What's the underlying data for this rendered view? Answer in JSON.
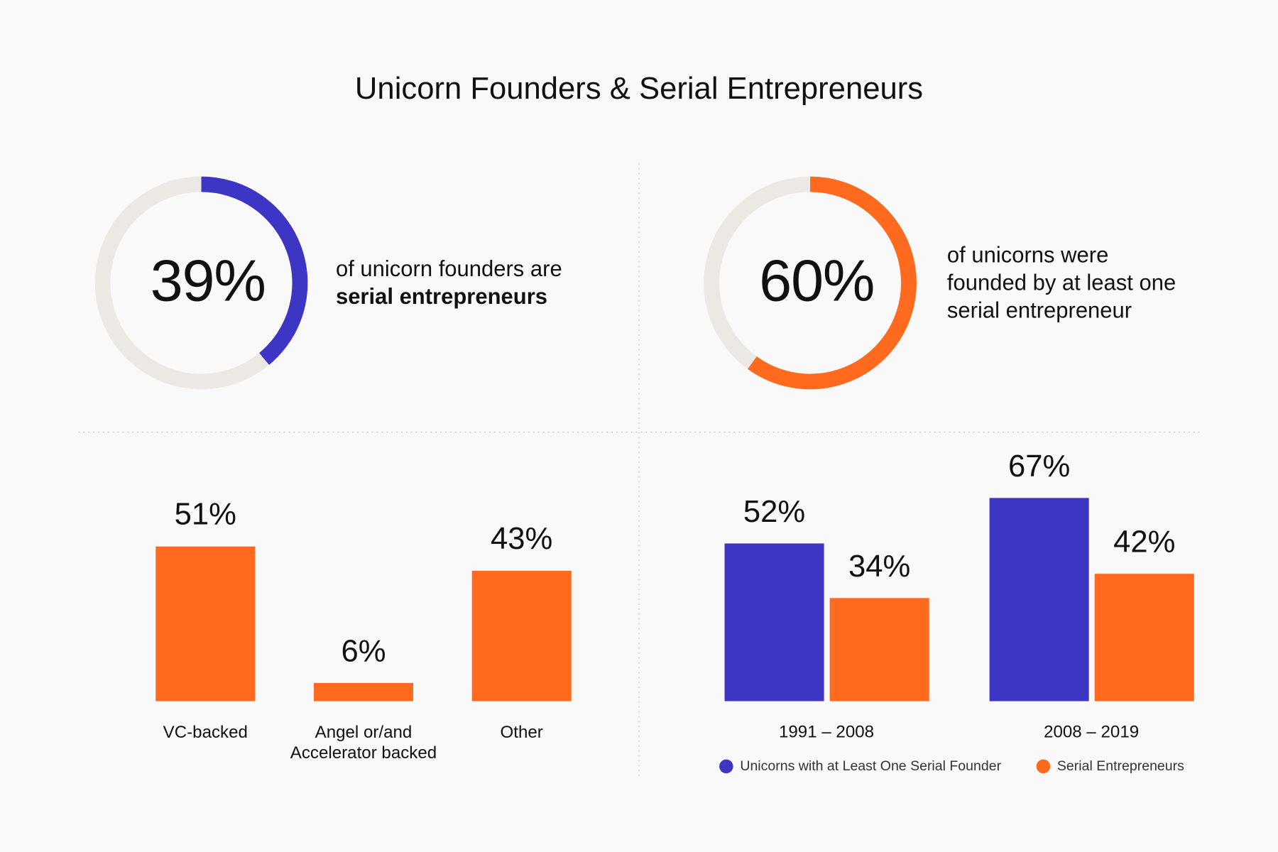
{
  "title": "Unicorn Founders & Serial Entrepreneurs",
  "chart_data": [
    {
      "type": "donut",
      "values": [
        39
      ],
      "value_labels": [
        "39%"
      ],
      "color": "#3d35c3",
      "caption": [
        "of unicorn founders are"
      ],
      "caption_bold": [
        "serial entrepreneurs"
      ]
    },
    {
      "type": "donut",
      "values": [
        60
      ],
      "value_labels": [
        "60%"
      ],
      "color": "#ff6a1f",
      "caption": [
        "of unicorns were",
        "founded by at least one",
        "serial entrepreneur"
      ]
    },
    {
      "type": "bar",
      "categories": [
        "VC-backed",
        "Angel or/and Accelerator backed",
        "Other"
      ],
      "values": [
        51,
        6,
        43
      ],
      "value_labels": [
        "51%",
        "6%",
        "43%"
      ],
      "color": "#ff6a1f"
    },
    {
      "type": "grouped-bar",
      "categories": [
        "1991 – 2008",
        "2008 – 2019"
      ],
      "series": [
        {
          "name": "Unicorns with at Least One Serial Founder",
          "color": "#3d35c3",
          "values": [
            52,
            67
          ],
          "value_labels": [
            "52%",
            "67%"
          ]
        },
        {
          "name": "Serial Entrepreneurs",
          "color": "#ff6a1f",
          "values": [
            34,
            42
          ],
          "value_labels": [
            "34%",
            "42%"
          ]
        }
      ]
    }
  ]
}
